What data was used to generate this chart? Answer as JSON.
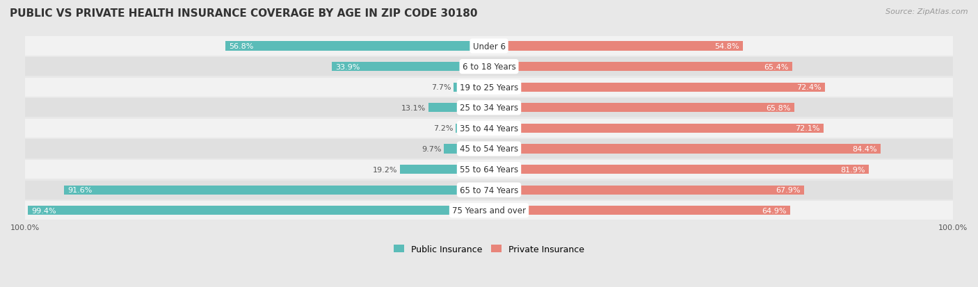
{
  "title": "PUBLIC VS PRIVATE HEALTH INSURANCE COVERAGE BY AGE IN ZIP CODE 30180",
  "source": "Source: ZipAtlas.com",
  "categories": [
    "Under 6",
    "6 to 18 Years",
    "19 to 25 Years",
    "25 to 34 Years",
    "35 to 44 Years",
    "45 to 54 Years",
    "55 to 64 Years",
    "65 to 74 Years",
    "75 Years and over"
  ],
  "public_values": [
    56.8,
    33.9,
    7.7,
    13.1,
    7.2,
    9.7,
    19.2,
    91.6,
    99.4
  ],
  "private_values": [
    54.8,
    65.4,
    72.4,
    65.8,
    72.1,
    84.4,
    81.9,
    67.9,
    64.9
  ],
  "public_color": "#5bbcb8",
  "private_color": "#e8857a",
  "bg_color": "#e8e8e8",
  "row_bg_even": "#f2f2f2",
  "row_bg_odd": "#e0e0e0",
  "max_value": 100.0,
  "title_fontsize": 11,
  "label_fontsize": 8.5,
  "value_fontsize": 8.0,
  "axis_fontsize": 8,
  "legend_fontsize": 9
}
